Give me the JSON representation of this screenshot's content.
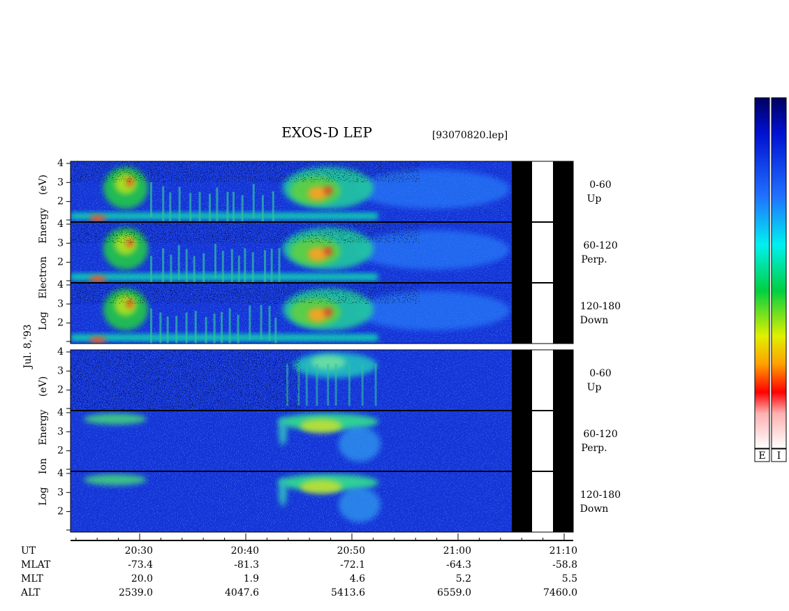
{
  "header": {
    "title": "EXOS-D LEP",
    "file": "[93070820.lep]"
  },
  "date": "Jul. 8,'93",
  "blocks": [
    {
      "label": "Log Electron Energy (eV)",
      "panels": [
        {
          "pitch": "0-60",
          "direction": "Up"
        },
        {
          "pitch": "60-120",
          "direction": "Perp."
        },
        {
          "pitch": "120-180",
          "direction": "Down"
        }
      ]
    },
    {
      "label": "Log Ion Energy (eV)",
      "panels": [
        {
          "pitch": "0-60",
          "direction": "Up"
        },
        {
          "pitch": "60-120",
          "direction": "Perp."
        },
        {
          "pitch": "120-180",
          "direction": "Down"
        }
      ]
    }
  ],
  "yticks": [
    2,
    3,
    4
  ],
  "time_axis": {
    "name": "UT",
    "ticks": [
      "20:30",
      "20:40",
      "20:50",
      "21:00",
      "21:10"
    ]
  },
  "ephemeris": [
    {
      "name": "MLAT",
      "values": [
        "-73.4",
        "-81.3",
        "-72.1",
        "-64.3",
        "-58.8"
      ]
    },
    {
      "name": "MLT",
      "values": [
        "20.0",
        "1.9",
        "4.6",
        "5.2",
        "5.5"
      ]
    },
    {
      "name": "ALT",
      "values": [
        "2539.0",
        "4047.6",
        "5413.6",
        "6559.0",
        "7460.0"
      ]
    }
  ],
  "colorbars": [
    "E",
    "I"
  ]
}
